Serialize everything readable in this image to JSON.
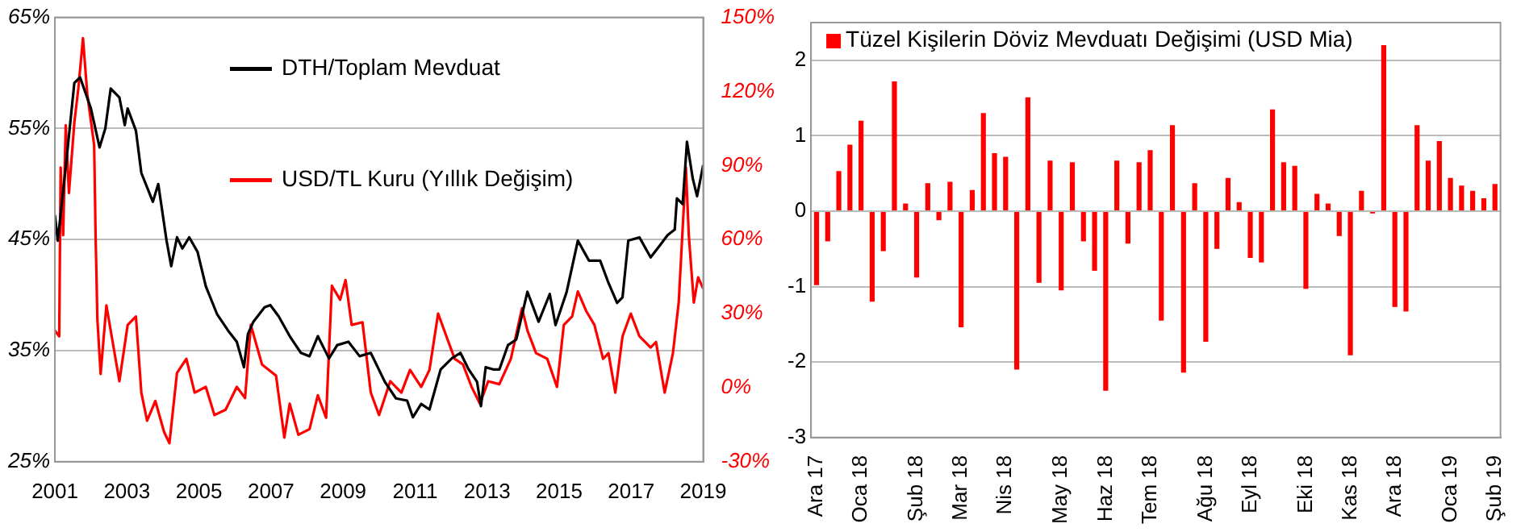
{
  "chart_data": [
    {
      "type": "line",
      "xlim": [
        2001,
        2019
      ],
      "xticks": [
        2001,
        2003,
        2005,
        2007,
        2009,
        2011,
        2013,
        2015,
        2017,
        2019
      ],
      "ylim": [
        25,
        65
      ],
      "yticks": [
        {
          "value": 25,
          "label": "25%"
        },
        {
          "value": 35,
          "label": "35%"
        },
        {
          "value": 45,
          "label": "45%"
        },
        {
          "value": 55,
          "label": "55%"
        },
        {
          "value": 65,
          "label": "65%"
        }
      ],
      "y2lim": [
        -30,
        150
      ],
      "y2ticks": [
        {
          "value": -30,
          "label": "-30%"
        },
        {
          "value": 0,
          "label": "0%"
        },
        {
          "value": 30,
          "label": "30%"
        },
        {
          "value": 60,
          "label": "60%"
        },
        {
          "value": 90,
          "label": "90%"
        },
        {
          "value": 120,
          "label": "120%"
        },
        {
          "value": 150,
          "label": "150%"
        }
      ],
      "grid": "y",
      "legend": "top",
      "marker": "none",
      "line_style": "solid",
      "series": [
        {
          "name": "DTH/Toplam Mevduat",
          "color": "#000000",
          "x": [
            2001.0,
            2001.08,
            2001.3,
            2001.54,
            2001.7,
            2002.0,
            2002.24,
            2002.4,
            2002.55,
            2002.79,
            2002.94,
            2003.02,
            2003.25,
            2003.4,
            2003.72,
            2003.87,
            2004.1,
            2004.23,
            2004.39,
            2004.54,
            2004.73,
            2004.96,
            2005.19,
            2005.5,
            2005.81,
            2006.05,
            2006.25,
            2006.36,
            2006.51,
            2006.82,
            2006.98,
            2007.21,
            2007.52,
            2007.83,
            2008.07,
            2008.3,
            2008.61,
            2008.84,
            2009.15,
            2009.46,
            2009.77,
            2010.16,
            2010.47,
            2010.78,
            2010.94,
            2011.17,
            2011.4,
            2011.71,
            2012.02,
            2012.26,
            2012.49,
            2012.72,
            2012.83,
            2012.96,
            2013.19,
            2013.34,
            2013.58,
            2013.81,
            2014.12,
            2014.43,
            2014.74,
            2014.9,
            2015.21,
            2015.52,
            2015.83,
            2016.14,
            2016.37,
            2016.61,
            2016.76,
            2016.92,
            2017.23,
            2017.54,
            2017.78,
            2018.01,
            2018.21,
            2018.27,
            2018.43,
            2018.55,
            2018.71,
            2018.83,
            2019.0
          ],
          "values": [
            47.2,
            44.9,
            51.5,
            59.1,
            59.6,
            56.8,
            53.3,
            55.0,
            58.6,
            57.8,
            55.3,
            56.8,
            54.8,
            51.0,
            48.4,
            50.0,
            44.9,
            42.6,
            45.2,
            44.2,
            45.2,
            43.9,
            40.8,
            38.3,
            36.8,
            35.8,
            33.5,
            36.5,
            37.6,
            38.9,
            39.1,
            38.1,
            36.3,
            34.8,
            34.5,
            36.3,
            34.3,
            35.5,
            35.8,
            34.5,
            34.8,
            32.2,
            30.7,
            30.5,
            29.0,
            30.2,
            29.7,
            33.3,
            34.3,
            34.8,
            33.3,
            32.2,
            30.0,
            33.5,
            33.3,
            33.3,
            35.5,
            36.0,
            40.3,
            37.6,
            40.1,
            37.3,
            40.3,
            44.9,
            43.1,
            43.1,
            41.1,
            39.3,
            39.8,
            44.9,
            45.2,
            43.4,
            44.4,
            45.4,
            45.9,
            48.7,
            48.2,
            53.8,
            50.5,
            48.9,
            51.7
          ]
        },
        {
          "name": "USD/TL Kuru (Yıllık Değişim)",
          "color": "#ff0000",
          "axis": "y2",
          "x": [
            2001.0,
            2001.12,
            2001.16,
            2001.23,
            2001.3,
            2001.39,
            2001.54,
            2001.65,
            2001.78,
            2001.9,
            2002.09,
            2002.13,
            2002.18,
            2002.27,
            2002.43,
            2002.63,
            2002.79,
            2003.02,
            2003.25,
            2003.4,
            2003.56,
            2003.79,
            2004.03,
            2004.18,
            2004.39,
            2004.65,
            2004.88,
            2005.19,
            2005.43,
            2005.74,
            2006.05,
            2006.28,
            2006.44,
            2006.75,
            2007.14,
            2007.37,
            2007.52,
            2007.76,
            2008.07,
            2008.3,
            2008.53,
            2008.69,
            2008.92,
            2009.07,
            2009.24,
            2009.54,
            2009.77,
            2010.0,
            2010.31,
            2010.62,
            2010.86,
            2011.17,
            2011.4,
            2011.64,
            2011.87,
            2012.1,
            2012.33,
            2012.57,
            2012.8,
            2013.03,
            2013.34,
            2013.66,
            2013.97,
            2014.12,
            2014.36,
            2014.67,
            2014.94,
            2015.13,
            2015.36,
            2015.52,
            2015.75,
            2015.98,
            2016.22,
            2016.37,
            2016.56,
            2016.76,
            2016.99,
            2017.23,
            2017.54,
            2017.69,
            2017.93,
            2018.16,
            2018.32,
            2018.52,
            2018.6,
            2018.74,
            2018.86,
            2019.0
          ],
          "values": [
            23.1,
            20.8,
            89.2,
            61.8,
            106.3,
            78.9,
            107.4,
            121.1,
            141.6,
            118.8,
            98.3,
            61.8,
            27.6,
            5.6,
            33.3,
            16.3,
            2.6,
            25.4,
            28.8,
            -2.0,
            -13.4,
            -5.4,
            -17.9,
            -22.5,
            6.0,
            11.7,
            -2.0,
            0.3,
            -11.1,
            -8.9,
            0.3,
            -4.2,
            25.4,
            9.4,
            4.9,
            -20.2,
            -6.5,
            -19.1,
            -16.8,
            -3.1,
            -12.2,
            41.3,
            35.6,
            43.6,
            25.4,
            26.5,
            -2.0,
            -11.1,
            2.6,
            -2.0,
            7.2,
            0.3,
            7.2,
            30.0,
            20.8,
            11.7,
            9.4,
            0.3,
            -6.5,
            2.6,
            1.4,
            11.7,
            32.2,
            23.1,
            14.0,
            11.7,
            0.3,
            25.4,
            28.8,
            39.0,
            31.1,
            25.4,
            11.7,
            14.0,
            -2.0,
            20.8,
            30.0,
            20.8,
            16.3,
            18.5,
            -2.0,
            14.0,
            34.5,
            89.2,
            61.8,
            34.5,
            44.7,
            40.1
          ]
        }
      ]
    },
    {
      "type": "bar",
      "categories": [
        "Ara 17",
        null,
        null,
        null,
        "Oca 18",
        null,
        null,
        null,
        null,
        "Şub 18",
        null,
        null,
        null,
        "Mar 18",
        null,
        null,
        null,
        "Nis 18",
        null,
        null,
        null,
        null,
        "May 18",
        null,
        null,
        null,
        "Haz 18",
        null,
        null,
        null,
        "Tem 18",
        null,
        null,
        null,
        null,
        "Ağu 18",
        null,
        null,
        null,
        "Eyl 18",
        null,
        null,
        null,
        null,
        "Eki 18",
        null,
        null,
        null,
        "Kas 18",
        null,
        null,
        null,
        "Ara 18",
        null,
        null,
        null,
        null,
        "Oca 19",
        null,
        null,
        null,
        "Şub 19"
      ],
      "ylim": [
        -3,
        2.5
      ],
      "yticks": [
        -3,
        -2,
        -1,
        0,
        1,
        2
      ],
      "grid": "y",
      "legend": "top",
      "series": [
        {
          "name": "Tüzel Kişilerin Döviz Mevduatı Değişimi (USD Mia)",
          "color": "#ff0000",
          "values": [
            -0.98,
            -0.4,
            0.53,
            0.88,
            1.2,
            -1.2,
            -0.53,
            1.72,
            0.1,
            -0.88,
            0.37,
            -0.12,
            0.39,
            -1.54,
            0.28,
            1.3,
            0.77,
            0.72,
            -2.1,
            1.51,
            -0.95,
            0.67,
            -1.05,
            0.65,
            -0.4,
            -0.79,
            -2.38,
            0.67,
            -0.43,
            0.65,
            0.81,
            -1.45,
            1.14,
            -2.14,
            0.37,
            -1.73,
            -0.5,
            0.44,
            0.12,
            -0.62,
            -0.68,
            1.35,
            0.65,
            0.6,
            -1.03,
            0.23,
            0.1,
            -0.33,
            -1.91,
            0.27,
            -0.03,
            2.2,
            -1.27,
            -1.33,
            1.14,
            0.67,
            0.93,
            0.44,
            0.34,
            0.27,
            0.17,
            0.36
          ]
        }
      ]
    }
  ]
}
